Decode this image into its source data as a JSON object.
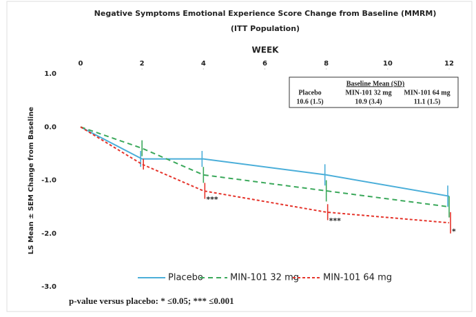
{
  "chart_data": {
    "type": "line",
    "title": "Negative Symptoms Emotional Experience Score Change from Baseline (MMRM)",
    "subtitle": "(ITT Population)",
    "x_label": "WEEK",
    "y_label": "LS Mean ± SEM Change from Baseline",
    "x": [
      0,
      2,
      4,
      8,
      12
    ],
    "xlim": [
      0,
      12
    ],
    "xticks": [
      0,
      2,
      4,
      6,
      8,
      10,
      12
    ],
    "ylim": [
      -3,
      1
    ],
    "yticks": [
      {
        "value": 1,
        "label": "1.0"
      },
      {
        "value": 0,
        "label": "0.0"
      },
      {
        "value": -1,
        "label": "-1.0"
      },
      {
        "value": -2,
        "label": "-2.0"
      },
      {
        "value": -3,
        "label": "-3.0"
      }
    ],
    "grid": false,
    "legend": "bottom",
    "series": [
      {
        "name": "Placebo",
        "color": "#4aaed9",
        "dash": "solid",
        "values": [
          0,
          -0.6,
          -0.6,
          -0.9,
          -1.3
        ],
        "errors": [
          0,
          0.15,
          0.15,
          0.2,
          0.2
        ]
      },
      {
        "name": "MIN-101 32 mg",
        "color": "#3aa85a",
        "dash": "dashed",
        "values": [
          0,
          -0.4,
          -0.9,
          -1.2,
          -1.5
        ],
        "errors": [
          0,
          0.15,
          0.15,
          0.2,
          0.2
        ]
      },
      {
        "name": "MIN-101 64 mg",
        "color": "#e5332a",
        "dash": "dotted",
        "values": [
          0,
          -0.7,
          -1.2,
          -1.6,
          -1.8
        ],
        "errors": [
          0,
          0.1,
          0.15,
          0.15,
          0.2
        ]
      }
    ],
    "annotations": [
      {
        "text": "***",
        "x": 4,
        "y": -1.2
      },
      {
        "text": "***",
        "x": 8,
        "y": -1.6
      },
      {
        "text": "*",
        "x": 12,
        "y": -1.8
      }
    ],
    "baseline_table": {
      "title": "Baseline Mean (SD)",
      "columns": [
        "Placebo",
        "MIN-101 32 mg",
        "MIN-101 64 mg"
      ],
      "values": [
        "10.6 (1.5)",
        "10.9 (3.4)",
        "11.1 (1.5)"
      ]
    },
    "footnote": "p-value versus placebo: * ≤0.05; *** ≤0.001"
  }
}
